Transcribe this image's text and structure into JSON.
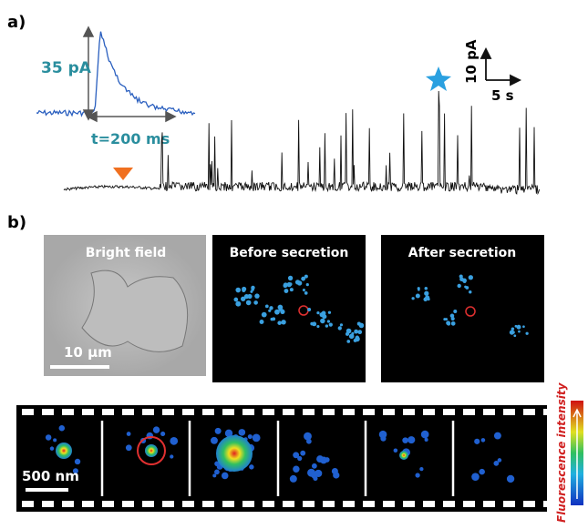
{
  "panel_a": {
    "label": "a)",
    "inset": {
      "amplitude_label": "35 pA",
      "duration_label": "t=200 ms"
    },
    "scale_bar": {
      "current_label": "10 pA",
      "time_label": "5 s"
    }
  },
  "panel_b": {
    "label": "b)",
    "images": [
      "Bright field",
      "Before secretion",
      "After secretion"
    ],
    "image_scale_label": "10 µm",
    "filmstrip_scale_label": "500 nm",
    "colorbar_label": "Fluorescence intensity"
  }
}
